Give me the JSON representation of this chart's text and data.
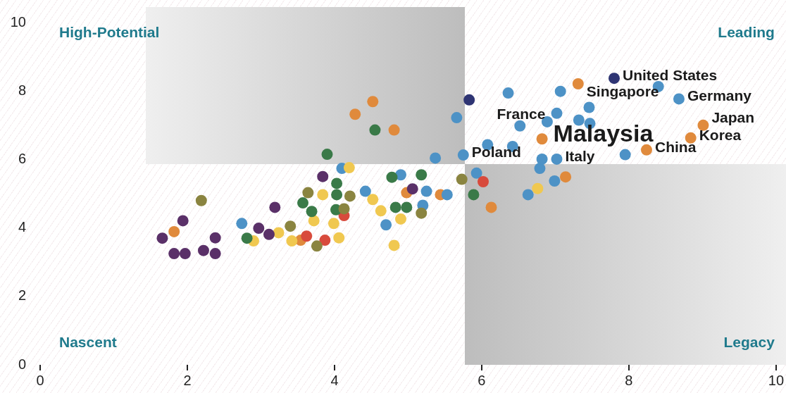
{
  "chart_data": {
    "type": "scatter",
    "xlim": [
      0,
      10
    ],
    "ylim": [
      0,
      10
    ],
    "xticks": [
      0,
      2,
      4,
      6,
      8,
      10
    ],
    "yticks": [
      0,
      2,
      4,
      6,
      8,
      10
    ],
    "grid": false,
    "legend": false,
    "marker": "circle",
    "series": [
      {
        "color": "#5a3068",
        "x": [
          1.66,
          1.82,
          1.94,
          1.97,
          2.22,
          2.38,
          2.38,
          2.97,
          3.11,
          3.19,
          3.84,
          5.06
        ],
        "values": [
          3.7,
          3.25,
          4.21,
          3.25,
          3.34,
          3.25,
          3.71,
          3.99,
          3.81,
          4.6,
          5.5,
          5.14
        ]
      },
      {
        "color": "#8a8440",
        "x": [
          2.19,
          3.4,
          3.64,
          3.76,
          4.13,
          4.21,
          5.18,
          5.73
        ],
        "values": [
          4.8,
          4.05,
          5.03,
          3.47,
          4.56,
          4.93,
          4.43,
          5.42
        ]
      },
      {
        "color": "#3a7a48",
        "x": [
          2.81,
          3.57,
          3.69,
          3.9,
          4.02,
          4.03,
          4.03,
          4.55,
          4.78,
          4.83,
          4.98,
          5.18,
          5.89
        ],
        "values": [
          3.7,
          4.73,
          4.48,
          6.15,
          4.53,
          4.97,
          5.3,
          6.86,
          5.48,
          4.6,
          4.6,
          5.55,
          4.97
        ]
      },
      {
        "color": "#f0c850",
        "x": [
          2.9,
          3.24,
          3.42,
          3.72,
          3.84,
          3.99,
          4.06,
          4.2,
          4.52,
          4.63,
          4.81,
          4.9,
          6.76
        ],
        "values": [
          3.62,
          3.86,
          3.62,
          4.21,
          4.97,
          4.13,
          3.71,
          5.76,
          4.83,
          4.5,
          3.49,
          4.26,
          5.15
        ]
      },
      {
        "color": "#d84a3c",
        "x": [
          3.62,
          3.87,
          4.13,
          6.02
        ],
        "values": [
          3.76,
          3.64,
          4.36,
          5.35
        ]
      },
      {
        "color": "#4d92c6",
        "x": [
          2.74,
          4.1,
          4.42,
          4.7,
          4.9,
          5.2,
          5.25,
          5.37,
          5.53,
          5.66,
          5.75,
          5.93,
          6.08,
          6.36,
          6.42,
          6.52,
          6.63,
          6.79,
          6.82,
          6.89,
          6.99,
          7.02,
          7.02,
          7.07,
          7.32,
          7.46,
          7.47,
          7.95,
          8.4,
          8.68
        ],
        "values": [
          4.13,
          5.74,
          5.07,
          4.09,
          5.55,
          4.66,
          5.07,
          6.04,
          4.97,
          7.22,
          6.13,
          5.6,
          6.43,
          7.94,
          6.38,
          6.98,
          4.97,
          5.74,
          6.01,
          7.1,
          5.37,
          6.01,
          7.35,
          7.99,
          7.15,
          7.52,
          7.05,
          6.14,
          8.13,
          7.77
        ]
      },
      {
        "color": "#e08a3c",
        "x": [
          1.82,
          3.54,
          4.28,
          4.52,
          4.81,
          4.98,
          5.44,
          6.13,
          6.82,
          7.14,
          7.31,
          8.24,
          8.84,
          9.01
        ],
        "values": [
          3.89,
          3.64,
          7.32,
          7.69,
          6.86,
          5.03,
          4.97,
          4.6,
          6.6,
          5.49,
          8.21,
          6.28,
          6.63,
          7.0
        ]
      },
      {
        "color": "#2e3473",
        "x": [
          5.83,
          7.8
        ],
        "values": [
          7.74,
          8.37
        ]
      }
    ],
    "annotations": [
      "High-Potential",
      "Leading",
      "Nascent",
      "Legacy",
      {
        "text": "United States",
        "x": 7.8,
        "y": 8.37
      },
      {
        "text": "Singapore",
        "x": 7.31,
        "y": 8.21
      },
      {
        "text": "Germany",
        "x": 8.68,
        "y": 7.77
      },
      {
        "text": "France",
        "x": 6.36,
        "y": 7.94
      },
      {
        "text": "Malaysia",
        "x": 6.82,
        "y": 6.6
      },
      {
        "text": "Japan",
        "x": 9.01,
        "y": 7.0
      },
      {
        "text": "Korea",
        "x": 8.84,
        "y": 6.63
      },
      {
        "text": "China",
        "x": 8.24,
        "y": 6.28
      },
      {
        "text": "Poland",
        "x": 5.75,
        "y": 6.13
      },
      {
        "text": "Italy",
        "x": 7.02,
        "y": 6.01
      }
    ]
  }
}
